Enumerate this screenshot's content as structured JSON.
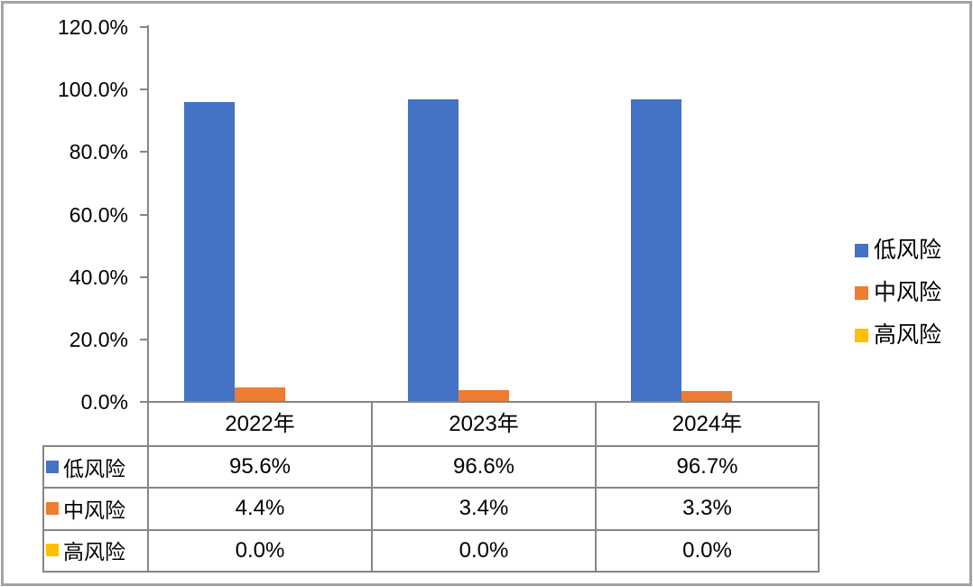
{
  "figure": {
    "background": "#ffffff",
    "border_color": "#a3a3a3",
    "line_color": "#868686"
  },
  "chart_data": {
    "type": "bar",
    "title": "",
    "xlabel": "",
    "ylabel": "",
    "categories": [
      "2022年",
      "2023年",
      "2024年"
    ],
    "series": [
      {
        "name": "低风险",
        "color": "#4472C4",
        "values": [
          95.6,
          96.6,
          96.7
        ],
        "labels": [
          "95.6%",
          "96.6%",
          "96.7%"
        ]
      },
      {
        "name": "中风险",
        "color": "#ED7D31",
        "values": [
          4.4,
          3.4,
          3.3
        ],
        "labels": [
          "4.4%",
          "3.4%",
          "3.3%"
        ]
      },
      {
        "name": "高风险",
        "color": "#FFC000",
        "values": [
          0.0,
          0.0,
          0.0
        ],
        "labels": [
          "0.0%",
          "0.0%",
          "0.0%"
        ]
      }
    ],
    "ylim": [
      0,
      120
    ],
    "y_tick_unit": "percent",
    "y_tick_labels": [
      "120.0%",
      "100.0%",
      "80.0%",
      "60.0%",
      "40.0%",
      "20.0%",
      "0.0%"
    ],
    "grid": false,
    "legend_position": "right",
    "data_table_shown": true
  }
}
